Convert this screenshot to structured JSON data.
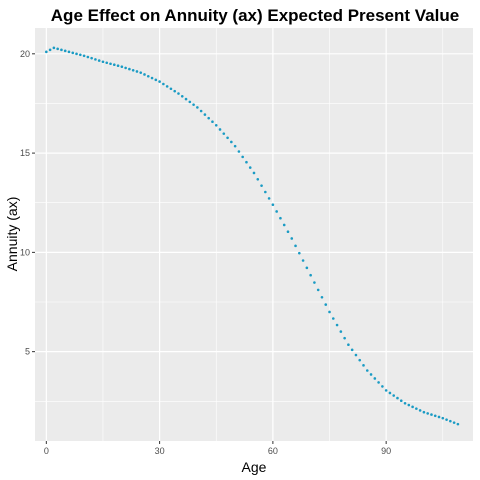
{
  "chart_data": {
    "type": "scatter",
    "title": "Age Effect on Annuity (ax) Expected Present Value",
    "xlabel": "Age",
    "ylabel": "Annuity (ax)",
    "xlim": [
      -3,
      113
    ],
    "ylim": [
      0.5,
      21.3
    ],
    "x_ticks": [
      0,
      30,
      60,
      90
    ],
    "x_tick_labels": [
      "0",
      "30",
      "60",
      "90"
    ],
    "y_ticks": [
      5,
      10,
      15,
      20
    ],
    "y_tick_labels": [
      "5",
      "10",
      "15",
      "20"
    ],
    "x_minor_ticks": [
      15,
      45,
      75,
      105
    ],
    "y_minor_ticks": [
      2.5,
      7.5,
      12.5,
      17.5
    ],
    "grid": true,
    "legend": "none",
    "colors": {
      "panel_background": "#ebebeb",
      "grid_major": "#ffffff",
      "points": "#1a9bc4"
    },
    "series": [
      {
        "anchor_x": [
          0,
          2,
          5,
          10,
          15,
          20,
          25,
          30,
          35,
          40,
          45,
          50,
          55,
          60,
          65,
          70,
          75,
          80,
          85,
          90,
          95,
          100,
          105,
          109
        ],
        "anchor_y": [
          20.1,
          20.3,
          20.15,
          19.9,
          19.6,
          19.35,
          19.05,
          18.6,
          18.0,
          17.3,
          16.4,
          15.35,
          14.0,
          12.4,
          10.7,
          8.85,
          7.0,
          5.35,
          4.05,
          3.05,
          2.4,
          1.95,
          1.65,
          1.35
        ]
      }
    ]
  }
}
